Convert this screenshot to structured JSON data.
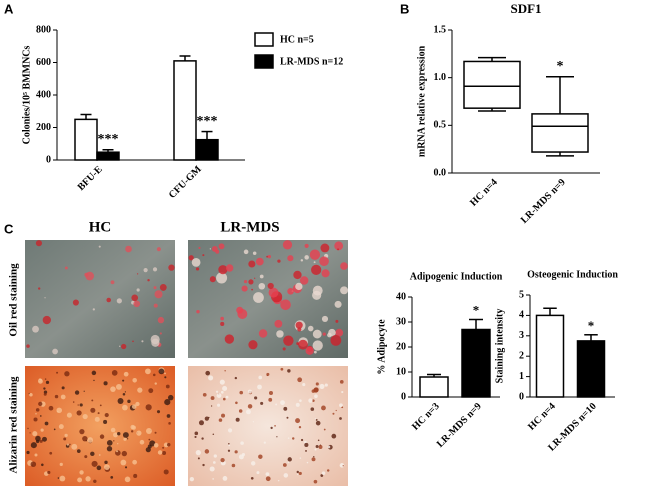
{
  "panel_labels": [
    "A",
    "B",
    "C"
  ],
  "images": {
    "column_labels": [
      "HC",
      "LR-MDS"
    ],
    "row_labels": [
      "Oil red staining",
      "Alizarin red staining"
    ]
  },
  "chart_data": [
    {
      "type": "bar",
      "ylabel": "Colonies/10⁵ BMMNCs",
      "categories": [
        "BFU-E",
        "CFU-GM"
      ],
      "series": [
        {
          "name": "HC n=5",
          "color": "#ffffff",
          "values": [
            250,
            610
          ],
          "errors": [
            30,
            30
          ]
        },
        {
          "name": "LR-MDS  n=12",
          "color": "#000000",
          "values": [
            48,
            125
          ],
          "errors": [
            15,
            50
          ],
          "annotations": [
            "***",
            "***"
          ]
        }
      ],
      "ylim": [
        0,
        800
      ],
      "yticks": [
        0,
        200,
        400,
        600,
        800
      ],
      "legend": "right"
    },
    {
      "type": "box",
      "title": "SDF1",
      "ylabel": "mRNA relative expression",
      "categories": [
        "HC n=4",
        "LR-MDS n=9"
      ],
      "min": [
        0.65,
        0.18
      ],
      "q1": [
        0.68,
        0.22
      ],
      "median": [
        0.91,
        0.49
      ],
      "q3": [
        1.17,
        0.62
      ],
      "max": [
        1.21,
        1.01
      ],
      "annotations": [
        null,
        "*"
      ],
      "ylim": [
        0,
        1.5
      ],
      "yticks": [
        {
          "value": 0,
          "label": "0.0"
        },
        {
          "value": 0.5,
          "label": "0.5"
        },
        {
          "value": 1,
          "label": "1.0"
        },
        {
          "value": 1.5,
          "label": "1.5"
        }
      ]
    },
    {
      "type": "bar",
      "title": "Adipogenic Induction",
      "ylabel": "% Adipocyte",
      "categories": [
        "HC n=3",
        "LR-MDS n=9"
      ],
      "values": [
        8,
        27
      ],
      "errors": [
        1,
        4
      ],
      "colors": [
        "#ffffff",
        "#000000"
      ],
      "annotations": [
        null,
        "*"
      ],
      "ylim": [
        0,
        40
      ],
      "yticks": [
        0,
        10,
        20,
        30,
        40
      ]
    },
    {
      "type": "bar",
      "title": "Osteogenic Induction",
      "ylabel": "Staining intensity",
      "categories": [
        "HC n=4",
        "LR-MDS n=10"
      ],
      "values": [
        4.0,
        2.75
      ],
      "errors": [
        0.35,
        0.3
      ],
      "colors": [
        "#ffffff",
        "#000000"
      ],
      "annotations": [
        null,
        "*"
      ],
      "ylim": [
        0,
        5
      ],
      "yticks": [
        0,
        1,
        2,
        3,
        4,
        5
      ]
    }
  ]
}
